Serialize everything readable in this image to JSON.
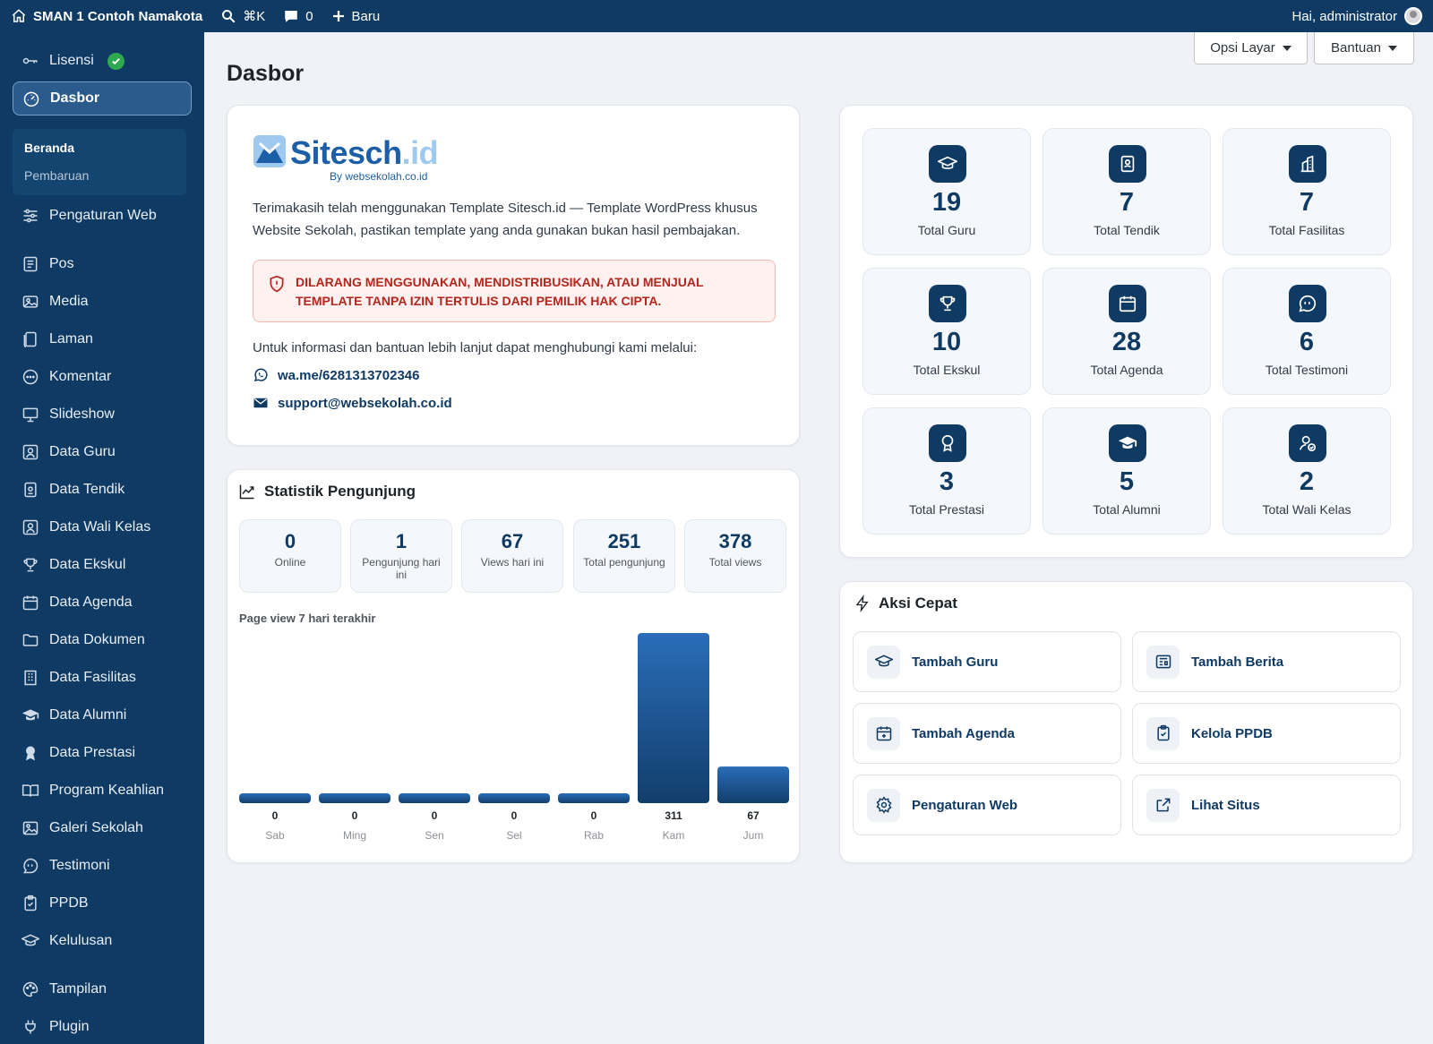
{
  "adminbar": {
    "site_name": "SMAN 1 Contoh Namakota",
    "search_shortcut": "⌘K",
    "comments_count": "0",
    "new_label": "Baru",
    "greeting": "Hai, administrator"
  },
  "sidebar": {
    "license": "Lisensi",
    "dashboard": "Dasbor",
    "submenu": {
      "home": "Beranda",
      "updates": "Pembaruan"
    },
    "items": [
      "Pengaturan Web",
      "Pos",
      "Media",
      "Laman",
      "Komentar",
      "Slideshow",
      "Data Guru",
      "Data Tendik",
      "Data Wali Kelas",
      "Data Ekskul",
      "Data Agenda",
      "Data Dokumen",
      "Data Fasilitas",
      "Data Alumni",
      "Data Prestasi",
      "Program Keahlian",
      "Galeri Sekolah",
      "Testimoni",
      "PPDB",
      "Kelulusan",
      "Tampilan",
      "Plugin"
    ]
  },
  "screen_options": "Opsi Layar",
  "help": "Bantuan",
  "page_title": "Dasbor",
  "license_card": {
    "logo_part1": "Sitesch",
    "logo_part2": ".id",
    "logo_sub": "By websekolah.co.id",
    "intro": "Terimakasih telah menggunakan Template Sitesch.id — Template WordPress khusus Website Sekolah, pastikan template yang anda gunakan bukan hasil pembajakan.",
    "warning": "DILARANG MENGGUNAKAN, MENDISTRIBUSIKAN, ATAU MENJUAL TEMPLATE TANPA IZIN TERTULIS DARI PEMILIK HAK CIPTA.",
    "contact_intro": "Untuk informasi dan bantuan lebih lanjut dapat menghubungi kami melalui:",
    "whatsapp": "wa.me/6281313702346",
    "email": "support@websekolah.co.id"
  },
  "stats": {
    "title": "Statistik Pengunjung",
    "boxes": [
      {
        "value": "0",
        "label": "Online"
      },
      {
        "value": "1",
        "label": "Pengunjung hari ini"
      },
      {
        "value": "67",
        "label": "Views hari ini"
      },
      {
        "value": "251",
        "label": "Total pengunjung"
      },
      {
        "value": "378",
        "label": "Total views"
      }
    ],
    "chart_caption": "Page view 7 hari terakhir"
  },
  "chart_data": {
    "type": "bar",
    "title": "Page view 7 hari terakhir",
    "categories": [
      "Sab",
      "Ming",
      "Sen",
      "Sel",
      "Rab",
      "Kam",
      "Jum"
    ],
    "values": [
      0,
      0,
      0,
      0,
      0,
      311,
      67
    ],
    "ylim": [
      0,
      311
    ],
    "grid": false,
    "bar_color": "#1d5fa6"
  },
  "counters": [
    {
      "value": "19",
      "label": "Total Guru",
      "icon": "graduation-cap-icon"
    },
    {
      "value": "7",
      "label": "Total Tendik",
      "icon": "id-badge-icon"
    },
    {
      "value": "7",
      "label": "Total Fasilitas",
      "icon": "building-icon"
    },
    {
      "value": "10",
      "label": "Total Ekskul",
      "icon": "trophy-icon"
    },
    {
      "value": "28",
      "label": "Total Agenda",
      "icon": "calendar-icon"
    },
    {
      "value": "6",
      "label": "Total Testimoni",
      "icon": "chat-quote-icon"
    },
    {
      "value": "3",
      "label": "Total Prestasi",
      "icon": "award-icon"
    },
    {
      "value": "5",
      "label": "Total Alumni",
      "icon": "graduation-cap-icon"
    },
    {
      "value": "2",
      "label": "Total Wali Kelas",
      "icon": "user-check-icon"
    }
  ],
  "quick_actions": {
    "title": "Aksi Cepat",
    "items": [
      {
        "label": "Tambah Guru",
        "icon": "graduation-cap-icon"
      },
      {
        "label": "Tambah Berita",
        "icon": "newspaper-icon"
      },
      {
        "label": "Tambah Agenda",
        "icon": "calendar-plus-icon"
      },
      {
        "label": "Kelola PPDB",
        "icon": "clipboard-icon"
      },
      {
        "label": "Pengaturan Web",
        "icon": "gear-icon"
      },
      {
        "label": "Lihat Situs",
        "icon": "external-link-icon"
      }
    ]
  },
  "colors": {
    "primary": "#0f3a63",
    "accent": "#1d5fa6",
    "warning_text": "#b3261e",
    "success": "#2fa84f"
  }
}
